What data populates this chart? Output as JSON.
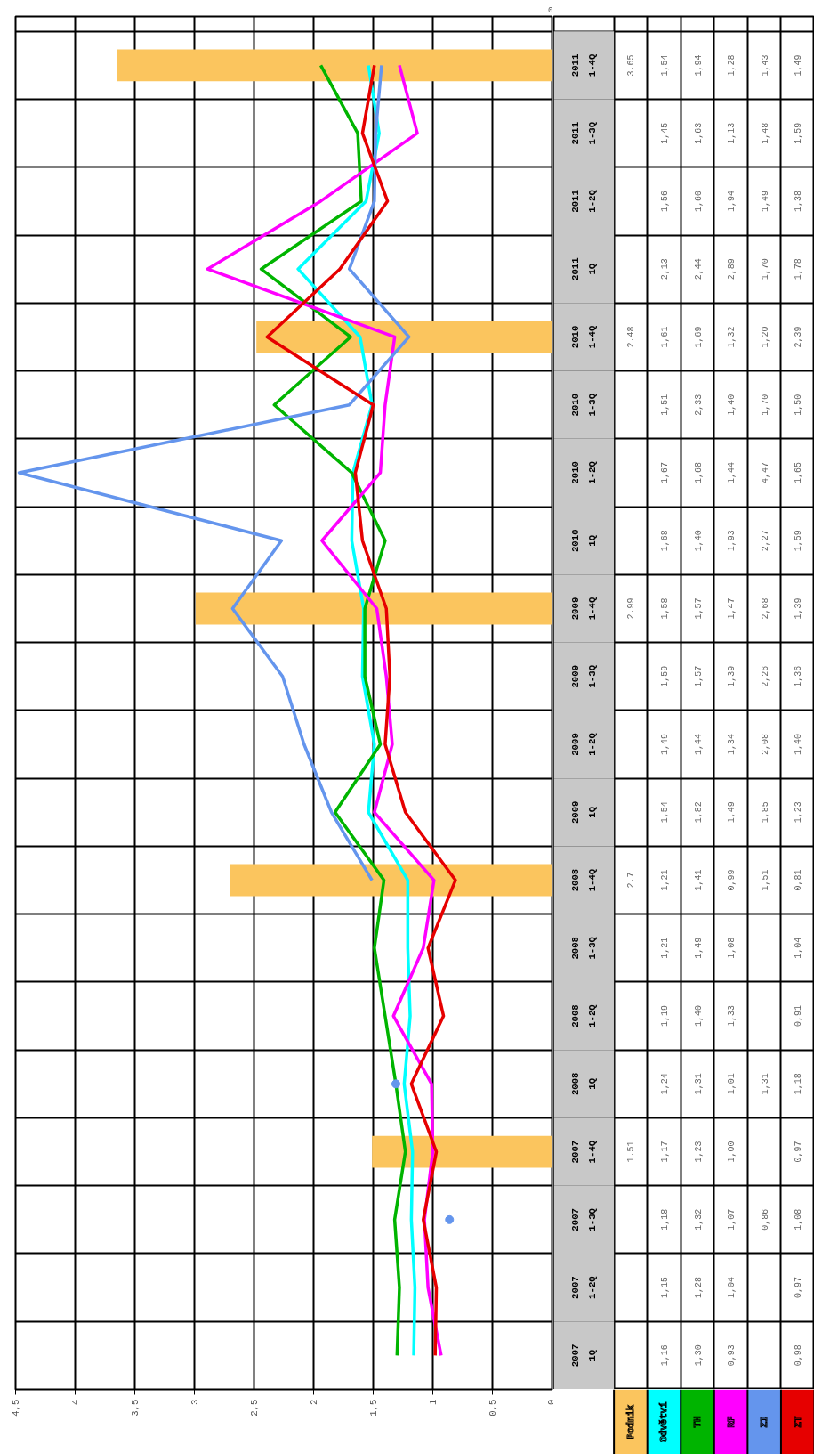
{
  "chart_data": {
    "type": "line",
    "orientation": "horizontal",
    "categories": [
      "2011 1-4Q",
      "2011 1-3Q",
      "2011 1-2Q",
      "2011 1Q",
      "2010 1-4Q",
      "2010 1-3Q",
      "2010 1-2Q",
      "2010 1Q",
      "2009 1-4Q",
      "2009 1-3Q",
      "2009 1-2Q",
      "2009 1Q",
      "2008 1-4Q",
      "2008 1-3Q",
      "2008 1-2Q",
      "2008 1Q",
      "2007 1-4Q",
      "2007 1-3Q",
      "2007 1-2Q",
      "2007 1Q"
    ],
    "xlim": [
      4.5,
      0
    ],
    "xticks": [
      {
        "value": 4.5,
        "label": "4,5"
      },
      4,
      {
        "value": 3.5,
        "label": "3,5"
      },
      3,
      {
        "value": 2.5,
        "label": "2,5"
      },
      2,
      {
        "value": 1.5,
        "label": "1,5"
      },
      1,
      {
        "value": 0.5,
        "label": "0,5"
      },
      0
    ],
    "annotations": [
      "0"
    ],
    "grid": true,
    "legend": "bottom right",
    "series": [
      {
        "name": "Podnik",
        "type": "bar",
        "color": "#fbc55e",
        "values": [
          3.65,
          null,
          null,
          null,
          2.48,
          null,
          null,
          null,
          2.99,
          null,
          null,
          null,
          2.7,
          null,
          null,
          null,
          1.51,
          null,
          null,
          null
        ],
        "value_labels": [
          "3.65",
          null,
          null,
          null,
          "2.48",
          null,
          null,
          null,
          "2.99",
          null,
          null,
          null,
          "2.7",
          null,
          null,
          null,
          "1.51",
          null,
          null,
          null
        ]
      },
      {
        "name": "Odvětví",
        "color": "#00ffff",
        "values": [
          1.54,
          1.45,
          1.56,
          2.13,
          1.61,
          1.51,
          1.67,
          1.68,
          1.58,
          1.59,
          1.49,
          1.54,
          1.21,
          1.21,
          1.19,
          1.24,
          1.17,
          1.18,
          1.15,
          1.16
        ],
        "value_labels": [
          "1,54",
          "1,45",
          "1,56",
          "2,13",
          "1,61",
          "1,51",
          "1,67",
          "1,68",
          "1,58",
          "1,59",
          "1,49",
          "1,54",
          "1,21",
          "1,21",
          "1,19",
          "1,24",
          "1,17",
          "1,18",
          "1,15",
          "1,16"
        ]
      },
      {
        "name": "TH",
        "color": "#00b400",
        "values": [
          1.94,
          1.63,
          1.6,
          2.44,
          1.69,
          2.33,
          1.68,
          1.4,
          1.57,
          1.57,
          1.44,
          1.82,
          1.41,
          1.49,
          1.4,
          1.31,
          1.23,
          1.32,
          1.28,
          1.3
        ],
        "value_labels": [
          "1,94",
          "1,63",
          "1,60",
          "2,44",
          "1,69",
          "2,33",
          "1,68",
          "1,40",
          "1,57",
          "1,57",
          "1,44",
          "1,82",
          "1,41",
          "1,49",
          "1,40",
          "1,31",
          "1,23",
          "1,32",
          "1,28",
          "1,30"
        ]
      },
      {
        "name": "RF",
        "color": "#ff00ff",
        "values": [
          1.28,
          1.13,
          1.94,
          2.89,
          1.32,
          1.4,
          1.44,
          1.93,
          1.47,
          1.39,
          1.34,
          1.49,
          0.99,
          1.08,
          1.33,
          1.01,
          1.0,
          1.07,
          1.04,
          0.93
        ],
        "value_labels": [
          "1,28",
          "1,13",
          "1,94",
          "2,89",
          "1,32",
          "1,40",
          "1,44",
          "1,93",
          "1,47",
          "1,39",
          "1,34",
          "1,49",
          "0,99",
          "1,08",
          "1,33",
          "1,01",
          "1,00",
          "1,07",
          "1,04",
          "0,93"
        ]
      },
      {
        "name": "ZI",
        "color": "#6495ed",
        "values": [
          1.43,
          1.48,
          1.49,
          1.7,
          1.2,
          1.7,
          4.47,
          2.27,
          2.68,
          2.26,
          2.08,
          1.85,
          1.51,
          null,
          null,
          1.31,
          null,
          0.86,
          null,
          null
        ],
        "value_labels": [
          "1,43",
          "1,48",
          "1,49",
          "1,70",
          "1,20",
          "1,70",
          "4,47",
          "2,27",
          "2,68",
          "2,26",
          "2,08",
          "1,85",
          "1,51",
          null,
          null,
          "1,31",
          null,
          "0,86",
          null,
          null
        ]
      },
      {
        "name": "ZT",
        "color": "#e60000",
        "values": [
          1.49,
          1.59,
          1.38,
          1.78,
          2.39,
          1.5,
          1.65,
          1.59,
          1.39,
          1.36,
          1.4,
          1.23,
          0.81,
          1.04,
          0.91,
          1.18,
          0.97,
          1.08,
          0.97,
          0.98
        ],
        "value_labels": [
          "1,49",
          "1,59",
          "1,38",
          "1,78",
          "2,39",
          "1,50",
          "1,65",
          "1,59",
          "1,39",
          "1,36",
          "1,40",
          "1,23",
          "0,81",
          "1,04",
          "0,91",
          "1,18",
          "0,97",
          "1,08",
          "0,97",
          "0,98"
        ]
      }
    ]
  }
}
